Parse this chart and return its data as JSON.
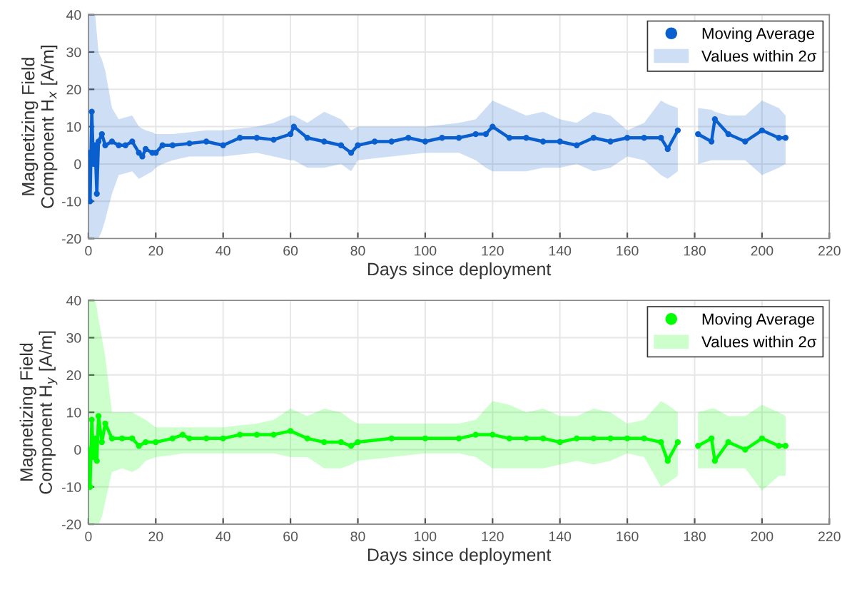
{
  "chart_data": [
    {
      "type": "line",
      "xlabel": "Days since deployment",
      "ylabel": "Magnetizing Field\nComponent H$_{x}$ [A/m]",
      "xlim": [
        0,
        220
      ],
      "xticks": [
        0,
        20,
        40,
        60,
        80,
        100,
        120,
        140,
        160,
        180,
        200,
        220
      ],
      "ylim": [
        -20,
        40
      ],
      "yticks": [
        -20,
        -10,
        0,
        10,
        20,
        30,
        40
      ],
      "grid": true,
      "legend": "top right",
      "annotations": [
        "Values within 2σ"
      ],
      "series": [
        {
          "name": "Moving Average",
          "color": "#0a5fcf",
          "marker": "circle",
          "x": [
            0,
            0.5,
            1,
            1.5,
            2,
            2.5,
            3,
            4,
            5,
            7,
            9,
            11,
            13,
            15,
            16,
            17,
            19,
            20,
            22,
            25,
            30,
            35,
            40,
            45,
            50,
            55,
            60,
            61,
            65,
            70,
            75,
            78,
            80,
            85,
            90,
            95,
            100,
            105,
            110,
            115,
            118,
            120,
            125,
            130,
            135,
            140,
            145,
            150,
            155,
            160,
            165,
            170,
            172,
            175,
            178,
            181,
            185,
            186,
            190,
            195,
            200,
            205,
            207
          ],
          "values": [
            3,
            -10,
            14,
            0,
            5,
            -8,
            6,
            8,
            5,
            6,
            5,
            5,
            6,
            3,
            2,
            4,
            3,
            3,
            5,
            5,
            5.5,
            6,
            5,
            7,
            7,
            6.5,
            8,
            10,
            7,
            6,
            5,
            3,
            5,
            6,
            6,
            7,
            6,
            7,
            7,
            8,
            8,
            10,
            7,
            7,
            6,
            6,
            5,
            7,
            6,
            7,
            7,
            7,
            4,
            9,
            null,
            8,
            6,
            12,
            8,
            6,
            9,
            7,
            7
          ],
          "upper": [
            40,
            40,
            40,
            40,
            40,
            35,
            30,
            28,
            25,
            15,
            12,
            12.5,
            13,
            10,
            9.5,
            9,
            8.5,
            8,
            8,
            8,
            8.5,
            9,
            9,
            9.5,
            10,
            11,
            13,
            13,
            11,
            14,
            12,
            9,
            10,
            10,
            10,
            10,
            10,
            10.5,
            11,
            12,
            15,
            17,
            15,
            13,
            14,
            12,
            11,
            14,
            13,
            9,
            11,
            17,
            16,
            15,
            null,
            15,
            14.5,
            14,
            13,
            13,
            17,
            15,
            13
          ],
          "lower": [
            -20,
            -20,
            -20,
            -20,
            -20,
            -20,
            -20,
            -18,
            -15,
            -8,
            -3,
            -2.5,
            -2,
            -4,
            -3.5,
            -3,
            -2,
            -1,
            0,
            1,
            2,
            2,
            2,
            2.5,
            3,
            2,
            1,
            1,
            -1,
            -1,
            0,
            -2,
            1,
            1.5,
            2,
            2.5,
            3,
            3,
            3,
            1,
            -1,
            -2,
            -2,
            -2,
            -1,
            -1,
            0,
            -2,
            -1,
            2,
            1,
            -3,
            -4,
            -2,
            null,
            0,
            1,
            1,
            1,
            1,
            -3,
            -1,
            0
          ]
        }
      ]
    },
    {
      "type": "line",
      "xlabel": "Days since deployment",
      "ylabel": "Magnetizing Field\nComponent H$_{y}$ [A/m]",
      "xlim": [
        0,
        220
      ],
      "xticks": [
        0,
        20,
        40,
        60,
        80,
        100,
        120,
        140,
        160,
        180,
        200,
        220
      ],
      "ylim": [
        -20,
        40
      ],
      "yticks": [
        -20,
        -10,
        0,
        10,
        20,
        30,
        40
      ],
      "grid": true,
      "legend": "top right",
      "annotations": [
        "Values within 2σ"
      ],
      "series": [
        {
          "name": "Moving Average",
          "color": "#00ff00",
          "marker": "circle",
          "x": [
            0,
            0.5,
            1,
            1.5,
            2,
            2.5,
            3,
            4,
            5,
            7,
            10,
            13,
            15,
            17,
            20,
            25,
            28,
            30,
            35,
            40,
            45,
            50,
            55,
            60,
            65,
            70,
            75,
            78,
            80,
            90,
            100,
            110,
            115,
            120,
            125,
            130,
            135,
            140,
            145,
            150,
            155,
            160,
            165,
            170,
            172,
            175,
            178,
            181,
            185,
            186,
            190,
            195,
            200,
            205,
            207
          ],
          "values": [
            0,
            -10,
            8,
            -2,
            3,
            -3,
            9,
            2,
            7,
            3,
            3,
            3,
            1,
            2,
            2,
            3,
            4,
            3,
            3,
            3,
            4,
            4,
            4,
            5,
            3,
            2,
            2,
            1,
            2,
            3,
            3,
            3,
            4,
            4,
            3,
            3,
            3,
            2,
            3,
            3,
            3,
            3,
            3,
            2,
            -3,
            2,
            null,
            1,
            3,
            -3,
            2,
            0,
            3,
            1,
            1
          ],
          "upper": [
            40,
            40,
            40,
            40,
            40,
            38,
            35,
            30,
            25,
            10,
            10,
            10,
            9,
            8,
            6,
            6,
            6,
            6,
            6,
            6,
            6.5,
            7,
            8,
            11,
            9,
            11,
            10,
            8,
            7,
            7,
            7,
            7,
            8,
            13,
            12,
            10,
            11,
            9,
            9,
            11,
            10,
            7,
            8,
            13,
            12,
            10,
            null,
            10,
            11,
            11,
            9,
            9,
            12,
            10,
            9
          ],
          "lower": [
            -20,
            -20,
            -20,
            -20,
            -20,
            -20,
            -20,
            -18,
            -14,
            -6,
            -5,
            -6,
            -5,
            -3,
            -2,
            -1.5,
            -1,
            -1,
            -1,
            -1,
            -1,
            -1,
            -1,
            -2,
            -2,
            -5,
            -5,
            -4,
            -3,
            -2,
            -1,
            -1,
            -2,
            -5,
            -5,
            -5,
            -5,
            -4,
            -3,
            -4,
            -3,
            -1,
            -2,
            -10,
            -9,
            -7,
            null,
            -5,
            -5,
            -5,
            -5,
            -5,
            -11,
            -7,
            -7
          ]
        }
      ]
    }
  ]
}
